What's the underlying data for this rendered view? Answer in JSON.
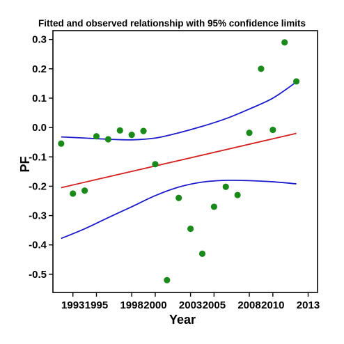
{
  "chart_data": {
    "type": "scatter",
    "title": "Fitted and observed relationship with 95% confidence limits",
    "xlabel": "Year",
    "ylabel": "PF",
    "xlim": [
      1991.3,
      2013.8
    ],
    "ylim": [
      -0.562,
      0.33
    ],
    "x_ticks": [
      1993,
      1995,
      1998,
      2000,
      2003,
      2005,
      2008,
      2010,
      2013
    ],
    "y_ticks": [
      -0.5,
      -0.4,
      -0.3,
      -0.2,
      -0.1,
      0.0,
      0.1,
      0.2,
      0.3
    ],
    "y_tick_labels": [
      "-0.5",
      "-0.4",
      "-0.3",
      "-0.2",
      "-0.1",
      "0.0",
      "0.1",
      "0.2",
      "0.3"
    ],
    "grid": false,
    "series": [
      {
        "kind": "points",
        "color": "#1a8a1a",
        "points": [
          {
            "x": 1992,
            "y": -0.055
          },
          {
            "x": 1993,
            "y": -0.225
          },
          {
            "x": 1994,
            "y": -0.215
          },
          {
            "x": 1995,
            "y": -0.03
          },
          {
            "x": 1996,
            "y": -0.04
          },
          {
            "x": 1997,
            "y": -0.01
          },
          {
            "x": 1998,
            "y": -0.025
          },
          {
            "x": 1999,
            "y": -0.012
          },
          {
            "x": 2000,
            "y": -0.125
          },
          {
            "x": 2001,
            "y": -0.52
          },
          {
            "x": 2002,
            "y": -0.24
          },
          {
            "x": 2003,
            "y": -0.345
          },
          {
            "x": 2004,
            "y": -0.43
          },
          {
            "x": 2005,
            "y": -0.27
          },
          {
            "x": 2006,
            "y": -0.202
          },
          {
            "x": 2007,
            "y": -0.23
          },
          {
            "x": 2008,
            "y": -0.018
          },
          {
            "x": 2009,
            "y": 0.2
          },
          {
            "x": 2010,
            "y": -0.008
          },
          {
            "x": 2011,
            "y": 0.29
          },
          {
            "x": 2012,
            "y": 0.157
          }
        ]
      },
      {
        "kind": "fitted-line",
        "color": "#d42020",
        "points": [
          {
            "x": 1992,
            "y": -0.205
          },
          {
            "x": 2012,
            "y": -0.02
          }
        ]
      },
      {
        "kind": "upper-limit",
        "color": "#1a1acc",
        "points": [
          {
            "x": 1992,
            "y": -0.032
          },
          {
            "x": 1994,
            "y": -0.036
          },
          {
            "x": 1996,
            "y": -0.04
          },
          {
            "x": 1998,
            "y": -0.042
          },
          {
            "x": 2000,
            "y": -0.036
          },
          {
            "x": 2002,
            "y": -0.018
          },
          {
            "x": 2004,
            "y": 0.004
          },
          {
            "x": 2006,
            "y": 0.03
          },
          {
            "x": 2008,
            "y": 0.063
          },
          {
            "x": 2010,
            "y": 0.1
          },
          {
            "x": 2012,
            "y": 0.155
          }
        ]
      },
      {
        "kind": "lower-limit",
        "color": "#1a1acc",
        "points": [
          {
            "x": 1992,
            "y": -0.378
          },
          {
            "x": 1994,
            "y": -0.345
          },
          {
            "x": 1996,
            "y": -0.307
          },
          {
            "x": 1998,
            "y": -0.27
          },
          {
            "x": 2000,
            "y": -0.232
          },
          {
            "x": 2002,
            "y": -0.203
          },
          {
            "x": 2004,
            "y": -0.186
          },
          {
            "x": 2006,
            "y": -0.18
          },
          {
            "x": 2008,
            "y": -0.181
          },
          {
            "x": 2010,
            "y": -0.185
          },
          {
            "x": 2012,
            "y": -0.192
          }
        ]
      }
    ]
  }
}
